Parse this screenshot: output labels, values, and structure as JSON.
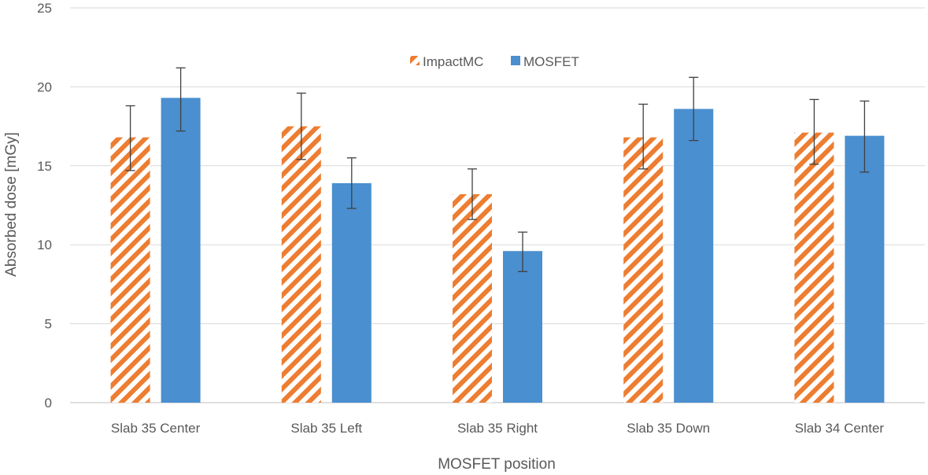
{
  "chart_data": {
    "type": "bar",
    "title": "",
    "xlabel": "MOSFET position",
    "ylabel": "Absorbed dose [mGy]",
    "ylim": [
      0,
      25
    ],
    "yticks": [
      0,
      5,
      10,
      15,
      20,
      25
    ],
    "grid": true,
    "legend_position": "top-center",
    "categories": [
      "Slab 35 Center",
      "Slab 35 Left",
      "Slab 35 Right",
      "Slab 35 Down",
      "Slab 34 Center"
    ],
    "series": [
      {
        "name": "ImpactMC",
        "pattern": "diagonal-hatch",
        "color": "#ED7D31",
        "values": [
          16.8,
          17.5,
          13.2,
          16.8,
          17.1
        ],
        "error_low": [
          14.7,
          15.4,
          11.6,
          14.8,
          15.1
        ],
        "error_high": [
          18.8,
          19.6,
          14.8,
          18.9,
          19.2
        ]
      },
      {
        "name": "MOSFET",
        "pattern": "solid",
        "color": "#4A8FCF",
        "values": [
          19.3,
          13.9,
          9.6,
          18.6,
          16.9
        ],
        "error_low": [
          17.2,
          12.3,
          8.3,
          16.6,
          14.6
        ],
        "error_high": [
          21.2,
          15.5,
          10.8,
          20.6,
          19.1
        ]
      }
    ]
  }
}
